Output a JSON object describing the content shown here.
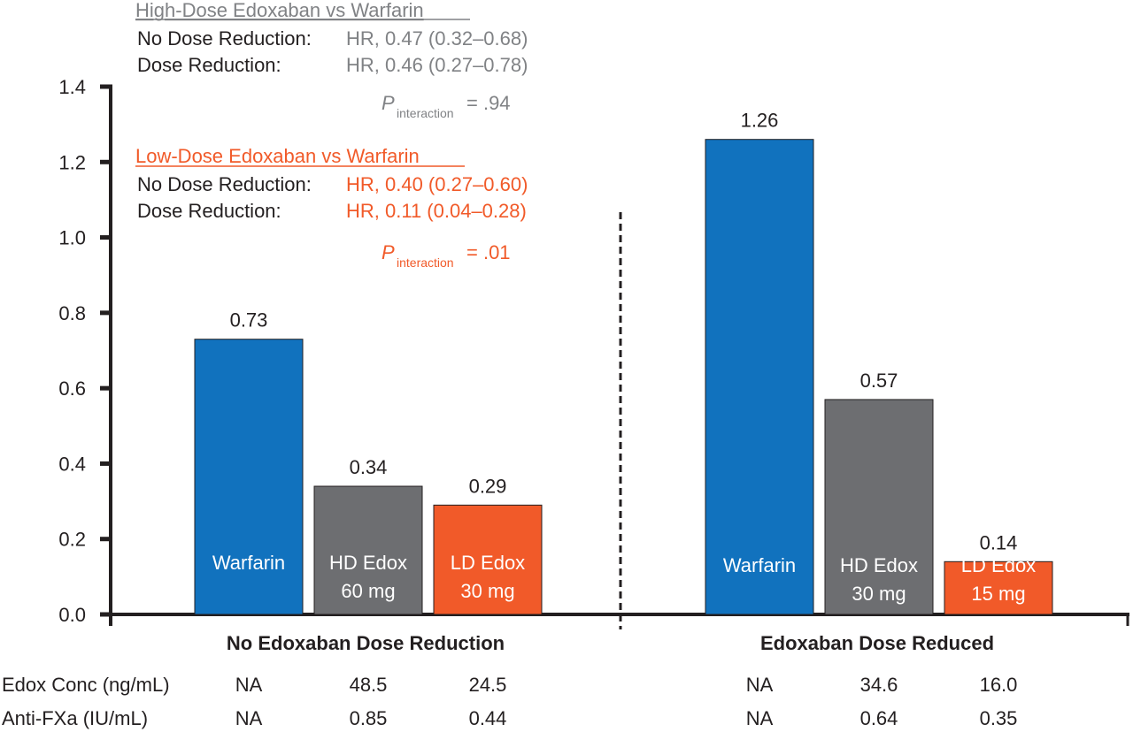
{
  "chart_data": {
    "type": "bar",
    "ylim": [
      0,
      1.4
    ],
    "y_ticks": [
      "0.0",
      "0.2",
      "0.4",
      "0.6",
      "0.8",
      "1.0",
      "1.2",
      "1.4"
    ],
    "grid": false,
    "colors": {
      "Warfarin": "#1172be",
      "HD Edox": "#6d6e71",
      "LD Edox": "#f15a29",
      "annotation_gray": "#808285"
    },
    "groups": [
      {
        "label": "No Edoxaban Dose Reduction",
        "bars": [
          {
            "label": [
              "Warfarin"
            ],
            "value": 0.73,
            "value_label": "0.73",
            "color": "#1172be"
          },
          {
            "label": [
              "HD Edox",
              "60 mg"
            ],
            "value": 0.34,
            "value_label": "0.34",
            "color": "#6d6e71"
          },
          {
            "label": [
              "LD Edox",
              "30 mg"
            ],
            "value": 0.29,
            "value_label": "0.29",
            "color": "#f15a29"
          }
        ],
        "edox_conc": [
          "NA",
          "48.5",
          "24.5"
        ],
        "anti_fxa": [
          "NA",
          "0.85",
          "0.44"
        ]
      },
      {
        "label": "Edoxaban Dose Reduced",
        "bars": [
          {
            "label": [
              "Warfarin"
            ],
            "value": 1.26,
            "value_label": "1.26",
            "color": "#1172be"
          },
          {
            "label": [
              "HD Edox",
              "30 mg"
            ],
            "value": 0.57,
            "value_label": "0.57",
            "color": "#6d6e71"
          },
          {
            "label": [
              "LD Edox",
              "15 mg"
            ],
            "value": 0.14,
            "value_label": "0.14",
            "color": "#f15a29"
          }
        ],
        "edox_conc": [
          "NA",
          "34.6",
          "16.0"
        ],
        "anti_fxa": [
          "NA",
          "0.64",
          "0.35"
        ]
      }
    ],
    "row_labels": {
      "edox_conc": "Edox Conc (ng/mL)",
      "anti_fxa": "Anti-FXa (IU/mL)"
    },
    "annotations": {
      "high": {
        "title": "High-Dose Edoxaban vs Warfarin",
        "no_red_label": "No Dose Reduction:",
        "no_red_value": "HR, 0.47 (0.32–0.68)",
        "red_label": "Dose Reduction:",
        "red_value": "HR, 0.46 (0.27–0.78)",
        "p": "P",
        "p_sub": "interaction",
        "p_value": "= .94"
      },
      "low": {
        "title": "Low-Dose Edoxaban vs Warfarin",
        "no_red_label": "No Dose Reduction:",
        "no_red_value": "HR, 0.40 (0.27–0.60)",
        "red_label": "Dose Reduction:",
        "red_value": "HR, 0.11 (0.04–0.28)",
        "p": "P",
        "p_sub": "interaction",
        "p_value": "= .01"
      }
    }
  }
}
